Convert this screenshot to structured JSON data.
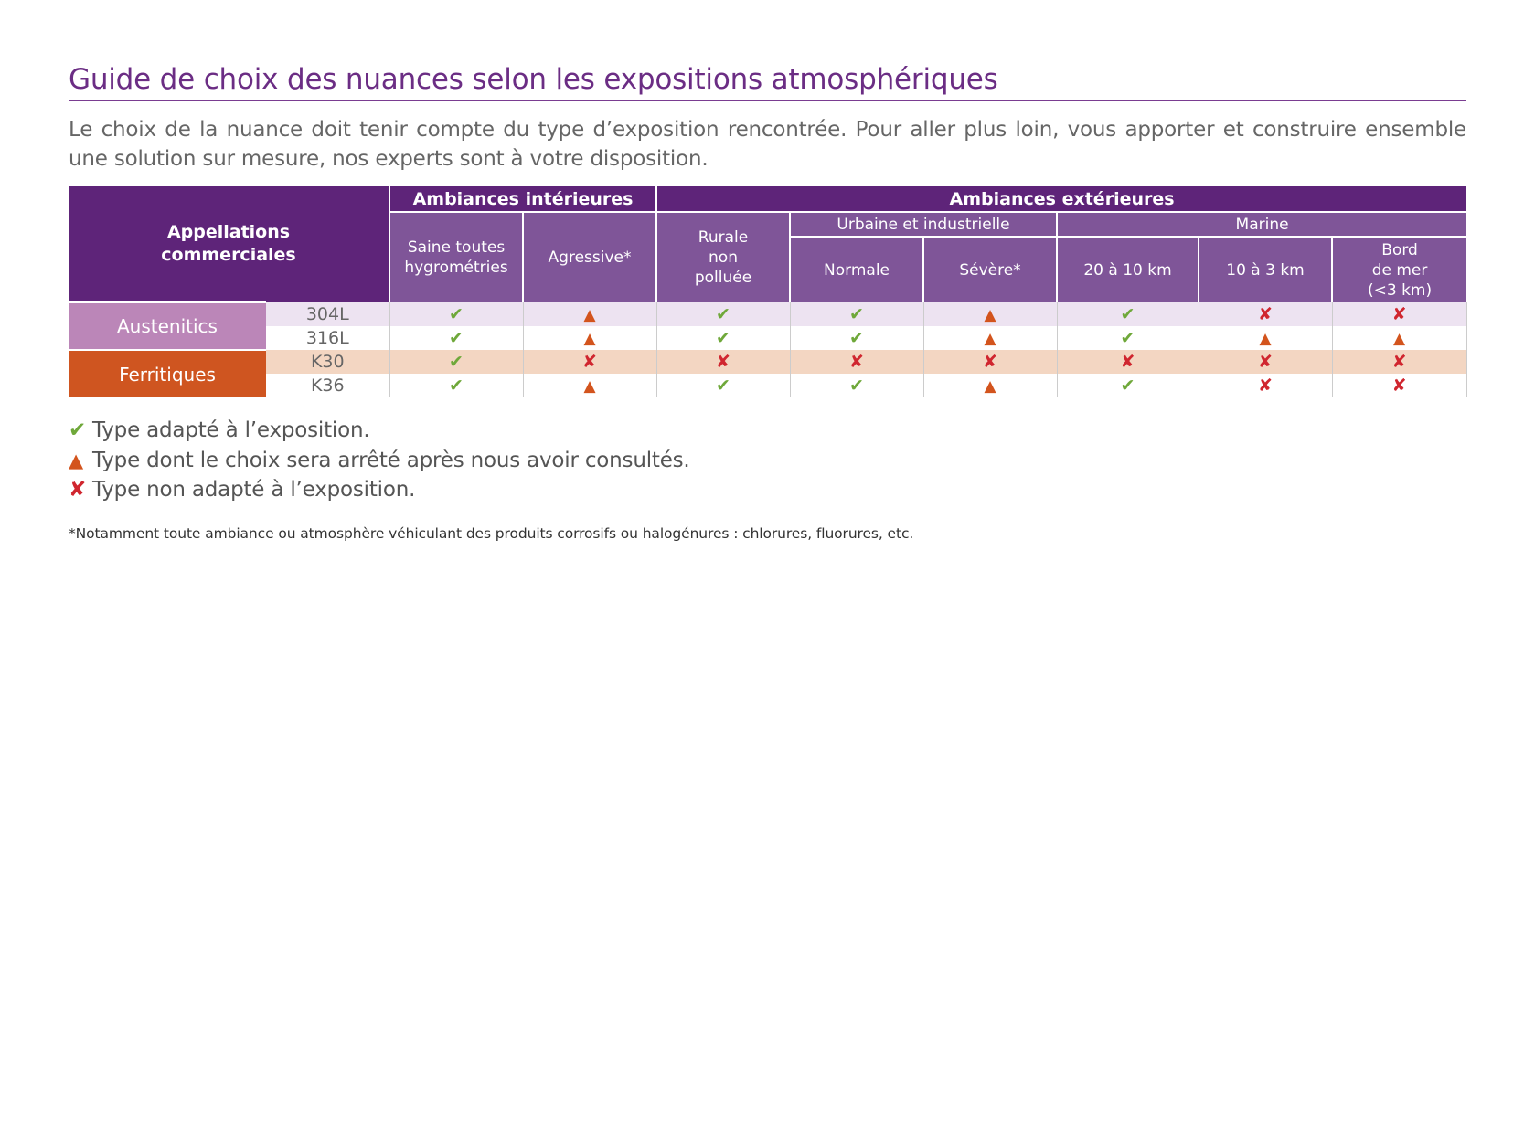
{
  "title": "Guide de choix des nuances selon les expositions atmosphériques",
  "intro": "Le choix de la nuance doit tenir compte du type d’exposition rencontrée. Pour aller plus loin, vous apporter et construire ensemble une solution sur mesure, nos experts sont à votre disposition.",
  "symbols": {
    "ok": "✔",
    "warn": "▲",
    "no": "✘"
  },
  "table": {
    "header": {
      "appellations_line1": "Appellations",
      "appellations_line2": "commerciales",
      "interior": "Ambiances intérieures",
      "exterior": "Ambiances extérieures",
      "urban": "Urbaine et industrielle",
      "marine": "Marine",
      "col_saine_1": "Saine toutes",
      "col_saine_2": "hygrométries",
      "col_agressive": "Agressive*",
      "col_rurale_1": "Rurale",
      "col_rurale_2": "non",
      "col_rurale_3": "polluée",
      "col_normale": "Normale",
      "col_severe": "Sévère*",
      "col_20_10": "20 à 10 km",
      "col_10_3": "10 à 3 km",
      "col_bord_1": "Bord",
      "col_bord_2": "de mer",
      "col_bord_3": "(<3 km)"
    },
    "families": {
      "austenitics": "Austenitics",
      "ferritiques": "Ferritiques"
    },
    "rows": [
      {
        "grade": "304L",
        "values": [
          "ok",
          "warn",
          "ok",
          "ok",
          "warn",
          "ok",
          "no",
          "no"
        ]
      },
      {
        "grade": "316L",
        "values": [
          "ok",
          "warn",
          "ok",
          "ok",
          "warn",
          "ok",
          "warn",
          "warn"
        ]
      },
      {
        "grade": "K30",
        "values": [
          "ok",
          "no",
          "no",
          "no",
          "no",
          "no",
          "no",
          "no"
        ]
      },
      {
        "grade": "K36",
        "values": [
          "ok",
          "warn",
          "ok",
          "ok",
          "warn",
          "ok",
          "no",
          "no"
        ]
      }
    ],
    "colors": {
      "ok": "#6fa83a",
      "warn": "#d3541d",
      "no": "#d0262f"
    }
  },
  "legend": {
    "ok": "Type adapté à l’exposition.",
    "warn": "Type dont le choix sera arrêté après nous avoir consultés.",
    "no": "Type non adapté à l’exposition."
  },
  "footnote": "*Notamment toute ambiance ou atmosphère véhiculant des produits corrosifs ou halogénures : chlorures, fluorures, etc."
}
